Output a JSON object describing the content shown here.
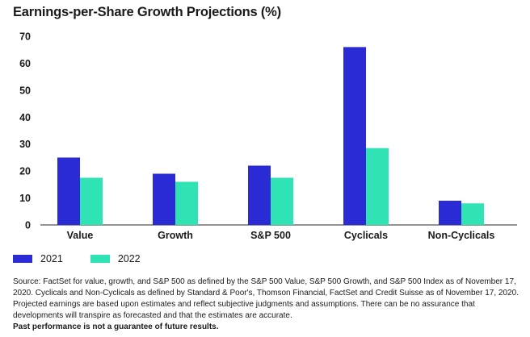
{
  "chart_data": {
    "type": "bar",
    "title": "Earnings-per-Share Growth Projections (%)",
    "categories": [
      "Value",
      "Growth",
      "S&P 500",
      "Cyclicals",
      "Non-Cyclicals"
    ],
    "series": [
      {
        "name": "2021",
        "values": [
          25,
          19,
          22,
          66,
          9
        ],
        "color": "#2b2bd6"
      },
      {
        "name": "2022",
        "values": [
          17.5,
          16,
          17.5,
          28.5,
          8
        ],
        "color": "#2fe3b5"
      }
    ],
    "ylim": [
      0,
      70
    ],
    "yticks": [
      "0",
      "10",
      "20",
      "30",
      "40",
      "50",
      "60",
      "70"
    ],
    "grid": false,
    "legend": "bottom-left"
  },
  "footnote": {
    "source": "Source: FactSet for value, growth, and S&P 500 as defined by the S&P 500 Value, S&P 500 Growth, and S&P 500 Index as of November 17, 2020. Cyclicals and Non-Cyclicals as defined by Standard & Poor's, Thomson Financial, FactSet and Credit Suisse as of November 17, 2020. Projected earnings are based upon estimates and reflect subjective judgments and assumptions. There can be no assurance that developments will transpire as forecasted and that the estimates are accurate.",
    "disclaimer": "Past performance is not a guarantee of future results."
  }
}
